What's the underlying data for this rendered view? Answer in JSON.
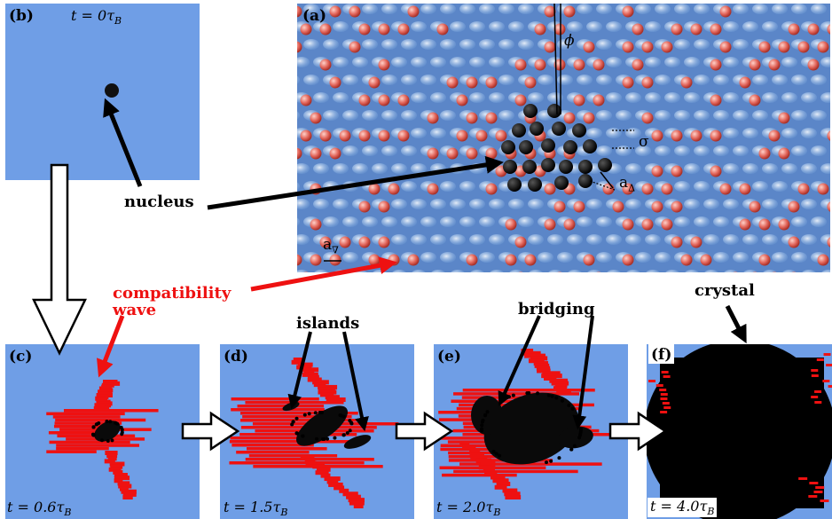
{
  "panels": {
    "a": {
      "label": "(a)",
      "sigma": "σ",
      "a_delta": "a",
      "a_delta_sub": "Δ",
      "a_v": "a",
      "a_v_sub": "∇",
      "phi": "ϕ"
    },
    "b": {
      "label": "(b)",
      "time": "t = 0τ",
      "time_sub": "B"
    },
    "c": {
      "label": "(c)",
      "time": "t = 0.6τ",
      "time_sub": "B"
    },
    "d": {
      "label": "(d)",
      "time": "t = 1.5τ",
      "time_sub": "B"
    },
    "e": {
      "label": "(e)",
      "time": "t = 2.0τ",
      "time_sub": "B"
    },
    "f": {
      "label": "(f)",
      "time": "t = 4.0τ",
      "time_sub": "B"
    }
  },
  "annotations": {
    "nucleus": "nucleus",
    "compat_line1": "compatibility",
    "compat_line2": "wave",
    "islands": "islands",
    "bridging": "bridging",
    "crystal": "crystal"
  },
  "colors": {
    "background_panel": "#6f9ee6",
    "compatibility": "#ee1111",
    "crystal": "#000000"
  }
}
